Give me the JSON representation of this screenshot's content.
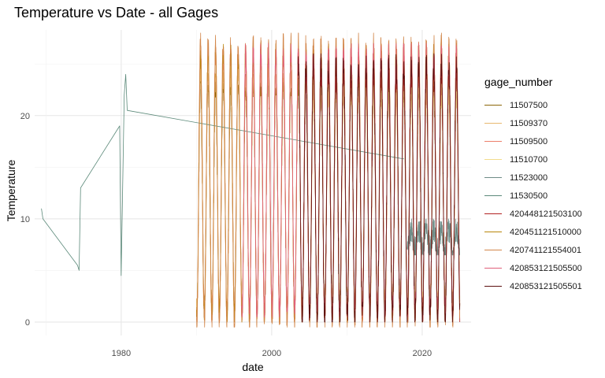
{
  "chart_data": {
    "type": "line",
    "title": "Temperature vs Date - all Gages",
    "xlabel": "date",
    "ylabel": "Temperature",
    "xlim": [
      1968.5,
      2026.5
    ],
    "ylim": [
      -1.3,
      28.3
    ],
    "x_ticks": [
      1980,
      2000,
      2020
    ],
    "y_ticks": [
      0,
      10,
      20
    ],
    "grid": true,
    "legend_title": "gage_number",
    "legend_position": "right",
    "series": [
      {
        "name": "11507500",
        "color": "#8B6508",
        "seasonal": {
          "start": 1990.0,
          "end": 2025.0,
          "min": 1.0,
          "max": 23.0
        }
      },
      {
        "name": "11509370",
        "color": "#E8B870",
        "seasonal": {
          "start": 1990.0,
          "end": 2025.0,
          "min": 1.0,
          "max": 24.0
        }
      },
      {
        "name": "11509500",
        "color": "#EC7F6A",
        "seasonal": {
          "start": 1990.0,
          "end": 2025.0,
          "min": 0.5,
          "max": 26.0
        }
      },
      {
        "name": "11510700",
        "color": "#F2DC8C",
        "seasonal": {
          "start": 2005.0,
          "end": 2025.0,
          "min": 2.0,
          "max": 22.0
        }
      },
      {
        "name": "11523000",
        "color": "#6E8C87",
        "seasonal": {
          "start": 2018.0,
          "end": 2025.0,
          "min": 7.0,
          "max": 9.0
        }
      },
      {
        "name": "11530500",
        "color": "#5C8A7A",
        "points": [
          [
            1969.4,
            11.0
          ],
          [
            1969.6,
            10.0
          ],
          [
            1974.2,
            5.5
          ],
          [
            1974.4,
            5.0
          ],
          [
            1974.6,
            13.0
          ],
          [
            1979.8,
            19.0
          ],
          [
            1980.0,
            4.5
          ],
          [
            1980.4,
            22.0
          ],
          [
            1980.6,
            24.0
          ],
          [
            1980.8,
            20.5
          ],
          [
            2017.6,
            15.8
          ]
        ]
      },
      {
        "name": "420448121503100",
        "color": "#B22222",
        "seasonal": {
          "start": 2004.0,
          "end": 2025.0,
          "min": 0.5,
          "max": 24.0
        }
      },
      {
        "name": "420451121510000",
        "color": "#B8860B",
        "seasonal": {
          "start": 1990.0,
          "end": 2025.0,
          "min": 0.5,
          "max": 26.0
        }
      },
      {
        "name": "420741121554001",
        "color": "#D2874B",
        "seasonal": {
          "start": 1990.0,
          "end": 2025.0,
          "min": 0.0,
          "max": 27.0
        }
      },
      {
        "name": "420853121505500",
        "color": "#E0607A",
        "seasonal": {
          "start": 1996.0,
          "end": 2025.0,
          "min": 1.0,
          "max": 26.0
        }
      },
      {
        "name": "420853121505501",
        "color": "#5C1010",
        "seasonal": {
          "start": 2003.5,
          "end": 2025.0,
          "min": 0.5,
          "max": 25.0
        }
      }
    ]
  }
}
